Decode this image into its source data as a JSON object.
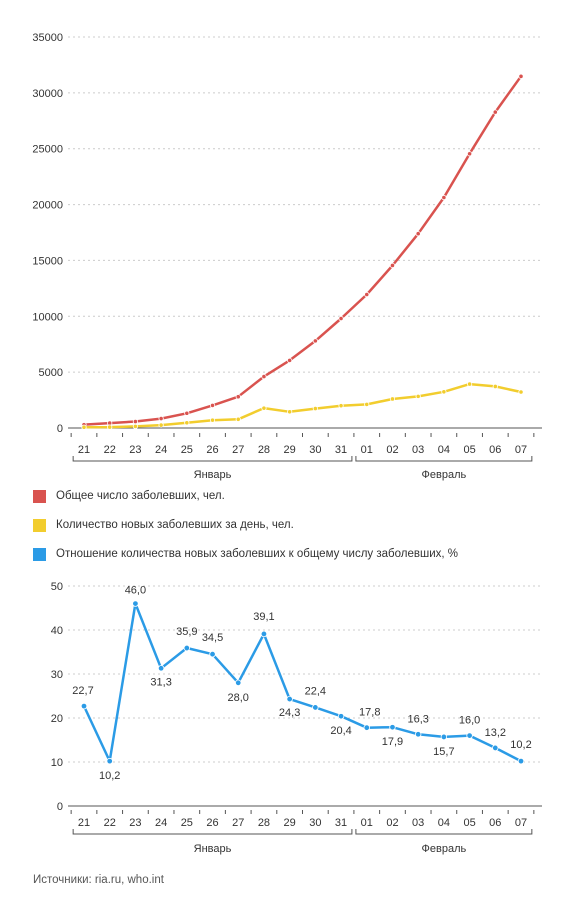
{
  "colors": {
    "total": "#d9534f",
    "daily": "#f2cd2e",
    "ratio": "#2b9be6",
    "grid": "#cccccc",
    "axis": "#555555",
    "text": "#333333"
  },
  "legend": [
    {
      "label": "Общее число заболевших, чел.",
      "color": "#d9534f"
    },
    {
      "label": "Количество новых заболевших за день, чел.",
      "color": "#f2cd2e"
    },
    {
      "label": "Отношение количества новых заболевших к общему числу заболевших, %",
      "color": "#2b9be6"
    }
  ],
  "source": "Источники: ria.ru, who.int",
  "chart_data": [
    {
      "type": "line",
      "categories": [
        "21",
        "22",
        "23",
        "24",
        "25",
        "26",
        "27",
        "28",
        "29",
        "30",
        "31",
        "01",
        "02",
        "03",
        "04",
        "05",
        "06",
        "07"
      ],
      "groups": [
        {
          "label": "Январь",
          "from": 0,
          "to": 10
        },
        {
          "label": "Февраль",
          "from": 11,
          "to": 17
        }
      ],
      "yticks": [
        0,
        5000,
        10000,
        15000,
        20000,
        25000,
        30000,
        35000
      ],
      "ylim": [
        0,
        35000
      ],
      "grid": true,
      "series": [
        {
          "name": "Общее число заболевших, чел.",
          "color": "#d9534f",
          "values": [
            300,
            440,
            580,
            845,
            1320,
            2020,
            2800,
            4600,
            6050,
            7800,
            9800,
            11950,
            14550,
            17390,
            20630,
            24550,
            28280,
            31480
          ]
        },
        {
          "name": "Количество новых заболевших за день, чел.",
          "color": "#f2cd2e",
          "values": [
            70,
            80,
            140,
            260,
            470,
            700,
            780,
            1780,
            1450,
            1740,
            2000,
            2110,
            2600,
            2830,
            3240,
            3930,
            3720,
            3220
          ]
        }
      ]
    },
    {
      "type": "line",
      "categories": [
        "21",
        "22",
        "23",
        "24",
        "25",
        "26",
        "27",
        "28",
        "29",
        "30",
        "31",
        "01",
        "02",
        "03",
        "04",
        "05",
        "06",
        "07"
      ],
      "groups": [
        {
          "label": "Январь",
          "from": 0,
          "to": 10
        },
        {
          "label": "Февраль",
          "from": 11,
          "to": 17
        }
      ],
      "yticks": [
        0,
        10,
        20,
        30,
        40,
        50
      ],
      "ylim": [
        0,
        50
      ],
      "grid": true,
      "series": [
        {
          "name": "Отношение количества новых заболевших к общему числу заболевших, %",
          "color": "#2b9be6",
          "values": [
            22.7,
            10.2,
            46.0,
            31.3,
            35.9,
            34.5,
            28.0,
            39.1,
            24.3,
            22.4,
            20.4,
            17.8,
            17.9,
            16.3,
            15.7,
            16.0,
            13.2,
            10.2
          ],
          "labels": [
            "22,7",
            "10,2",
            "46,0",
            "31,3",
            "35,9",
            "34,5",
            "28,0",
            "39,1",
            "24,3",
            "22,4",
            "20,4",
            "17,8",
            "17,9",
            "16,3",
            "15,7",
            "16,0",
            "13,2",
            "10,2"
          ]
        }
      ]
    }
  ]
}
